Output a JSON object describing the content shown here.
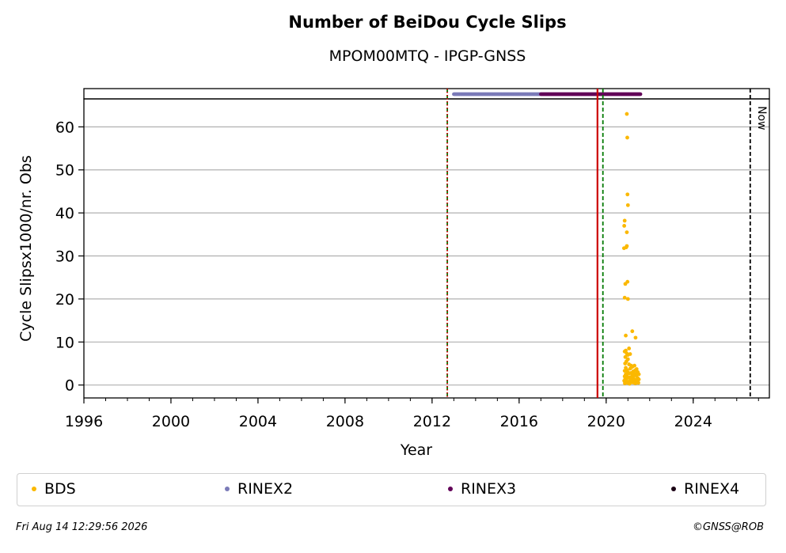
{
  "title": "Number of BeiDou Cycle Slips",
  "subtitle": "MPOM00MTQ - IPGP-GNSS",
  "footer": {
    "timestamp": "Fri Aug 14 12:29:56 2026",
    "copyright": "©GNSS@ROB"
  },
  "now_label": "Now",
  "colors": {
    "BDS": "#fbb800",
    "RINEX2": "#7b7bb8",
    "RINEX3": "#620058",
    "RINEX4": "#1a0014",
    "green_line": "#007a00",
    "red_line": "#cc0000"
  },
  "legend": [
    {
      "label": "BDS",
      "color": "#fbb800"
    },
    {
      "label": "RINEX2",
      "color": "#7b7bb8"
    },
    {
      "label": "RINEX3",
      "color": "#620058"
    },
    {
      "label": "RINEX4",
      "color": "#1a0014"
    }
  ],
  "chart_data": {
    "type": "scatter",
    "xlabel": "Year",
    "ylabel": "Cycle Slipsx1000/nr. Obs",
    "xlim": [
      1996,
      2027.5
    ],
    "ylim": [
      -3,
      66.5
    ],
    "xticks": [
      "1996",
      "2000",
      "2004",
      "2008",
      "2012",
      "2016",
      "2020",
      "2024"
    ],
    "yticks": [
      "0",
      "10",
      "20",
      "30",
      "40",
      "50",
      "60"
    ],
    "grid": "horizontal",
    "legend_position": "bottom",
    "vertical_lines": [
      {
        "x": 2012.7,
        "color": "green",
        "style": "dashed"
      },
      {
        "x": 2012.7,
        "color": "red",
        "style": "dotted"
      },
      {
        "x": 2019.6,
        "color": "red",
        "style": "solid"
      },
      {
        "x": 2019.85,
        "color": "green",
        "style": "dashed"
      },
      {
        "x": 2026.62,
        "color": "black",
        "style": "dashed",
        "label": "Now"
      }
    ],
    "rinex_coverage": [
      {
        "name": "RINEX2",
        "start": 2013.0,
        "end": 2017.0
      },
      {
        "name": "RINEX3",
        "start": 2017.0,
        "end": 2021.6
      }
    ],
    "series": [
      {
        "name": "BDS",
        "x": [
          2020.95,
          2020.97,
          2020.85,
          2020.83,
          2020.98,
          2021.0,
          2020.82,
          2020.95,
          2020.92,
          2020.95,
          2020.85,
          2021.0,
          2020.88,
          2020.98,
          2021.35,
          2021.2,
          2020.9,
          2021.05,
          2020.85,
          2020.9,
          2020.95,
          2021.0,
          2020.88,
          2021.1,
          2021.15,
          2020.93,
          2021.0,
          2020.87,
          2021.05,
          2021.3,
          2020.9,
          2020.95,
          2021.1,
          2021.2,
          2021.4,
          2020.85,
          2021.0,
          2021.15,
          2021.25,
          2021.35,
          2021.45,
          2020.9,
          2021.05,
          2021.2,
          2021.3,
          2021.4,
          2020.85,
          2020.95,
          2021.1,
          2021.25,
          2021.38,
          2021.5,
          2020.88,
          2021.0,
          2021.12,
          2021.22,
          2021.33,
          2021.45,
          2020.83,
          2020.92,
          2021.08,
          2021.18,
          2021.28,
          2021.42,
          2021.5,
          2020.9,
          2021.02,
          2021.15,
          2021.3,
          2021.45,
          2020.86,
          2020.97,
          2021.07,
          2021.2,
          2021.35,
          2021.48
        ],
        "y": [
          63,
          57.5,
          38.2,
          37,
          44.3,
          41.8,
          31.8,
          35.5,
          32,
          32.3,
          20.3,
          20,
          23.5,
          24,
          11,
          12.5,
          11.5,
          8.5,
          7.8,
          8,
          7.3,
          7,
          6.5,
          7.2,
          4.5,
          5.5,
          6,
          5,
          4.8,
          4.5,
          4,
          3.5,
          3.8,
          4.2,
          3.7,
          3.3,
          3,
          2.8,
          3.2,
          3.5,
          3,
          2.5,
          2.7,
          2.2,
          2.5,
          2.8,
          2,
          2.3,
          1.8,
          2,
          2.2,
          2.5,
          1.5,
          1.7,
          1.5,
          1.8,
          1.3,
          1.6,
          1,
          1.2,
          0.9,
          1.1,
          0.8,
          1,
          1.3,
          0.7,
          0.6,
          0.8,
          0.5,
          0.7,
          0.4,
          0.5,
          0.3,
          0.6,
          0.4,
          0.5
        ]
      }
    ]
  }
}
